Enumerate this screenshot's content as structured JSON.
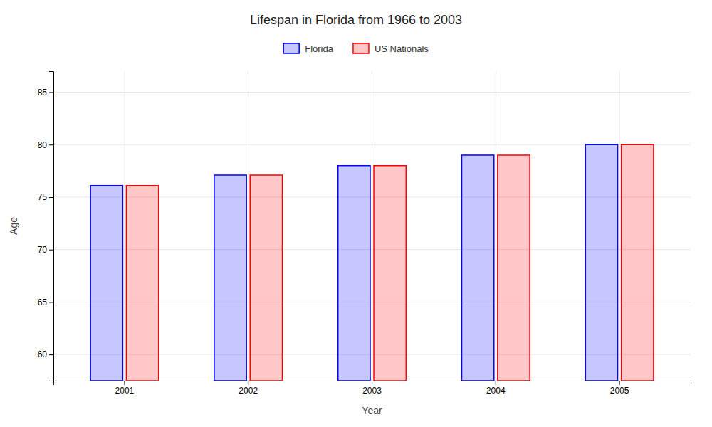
{
  "chart_data": {
    "type": "bar",
    "title": "Lifespan in Florida from 1966 to 2003",
    "xlabel": "Year",
    "ylabel": "Age",
    "categories": [
      "2001",
      "2002",
      "2003",
      "2004",
      "2005"
    ],
    "series": [
      {
        "name": "Florida",
        "color": "#0000ff",
        "values": [
          76.1,
          77.1,
          78.0,
          79.0,
          80.0
        ]
      },
      {
        "name": "US Nationals",
        "color": "#ff0000",
        "values": [
          76.1,
          77.1,
          78.0,
          79.0,
          80.0
        ]
      }
    ],
    "ylim": [
      57.5,
      87
    ],
    "yticks": [
      60,
      65,
      70,
      75,
      80,
      85
    ],
    "grid": true,
    "legend": "top"
  }
}
